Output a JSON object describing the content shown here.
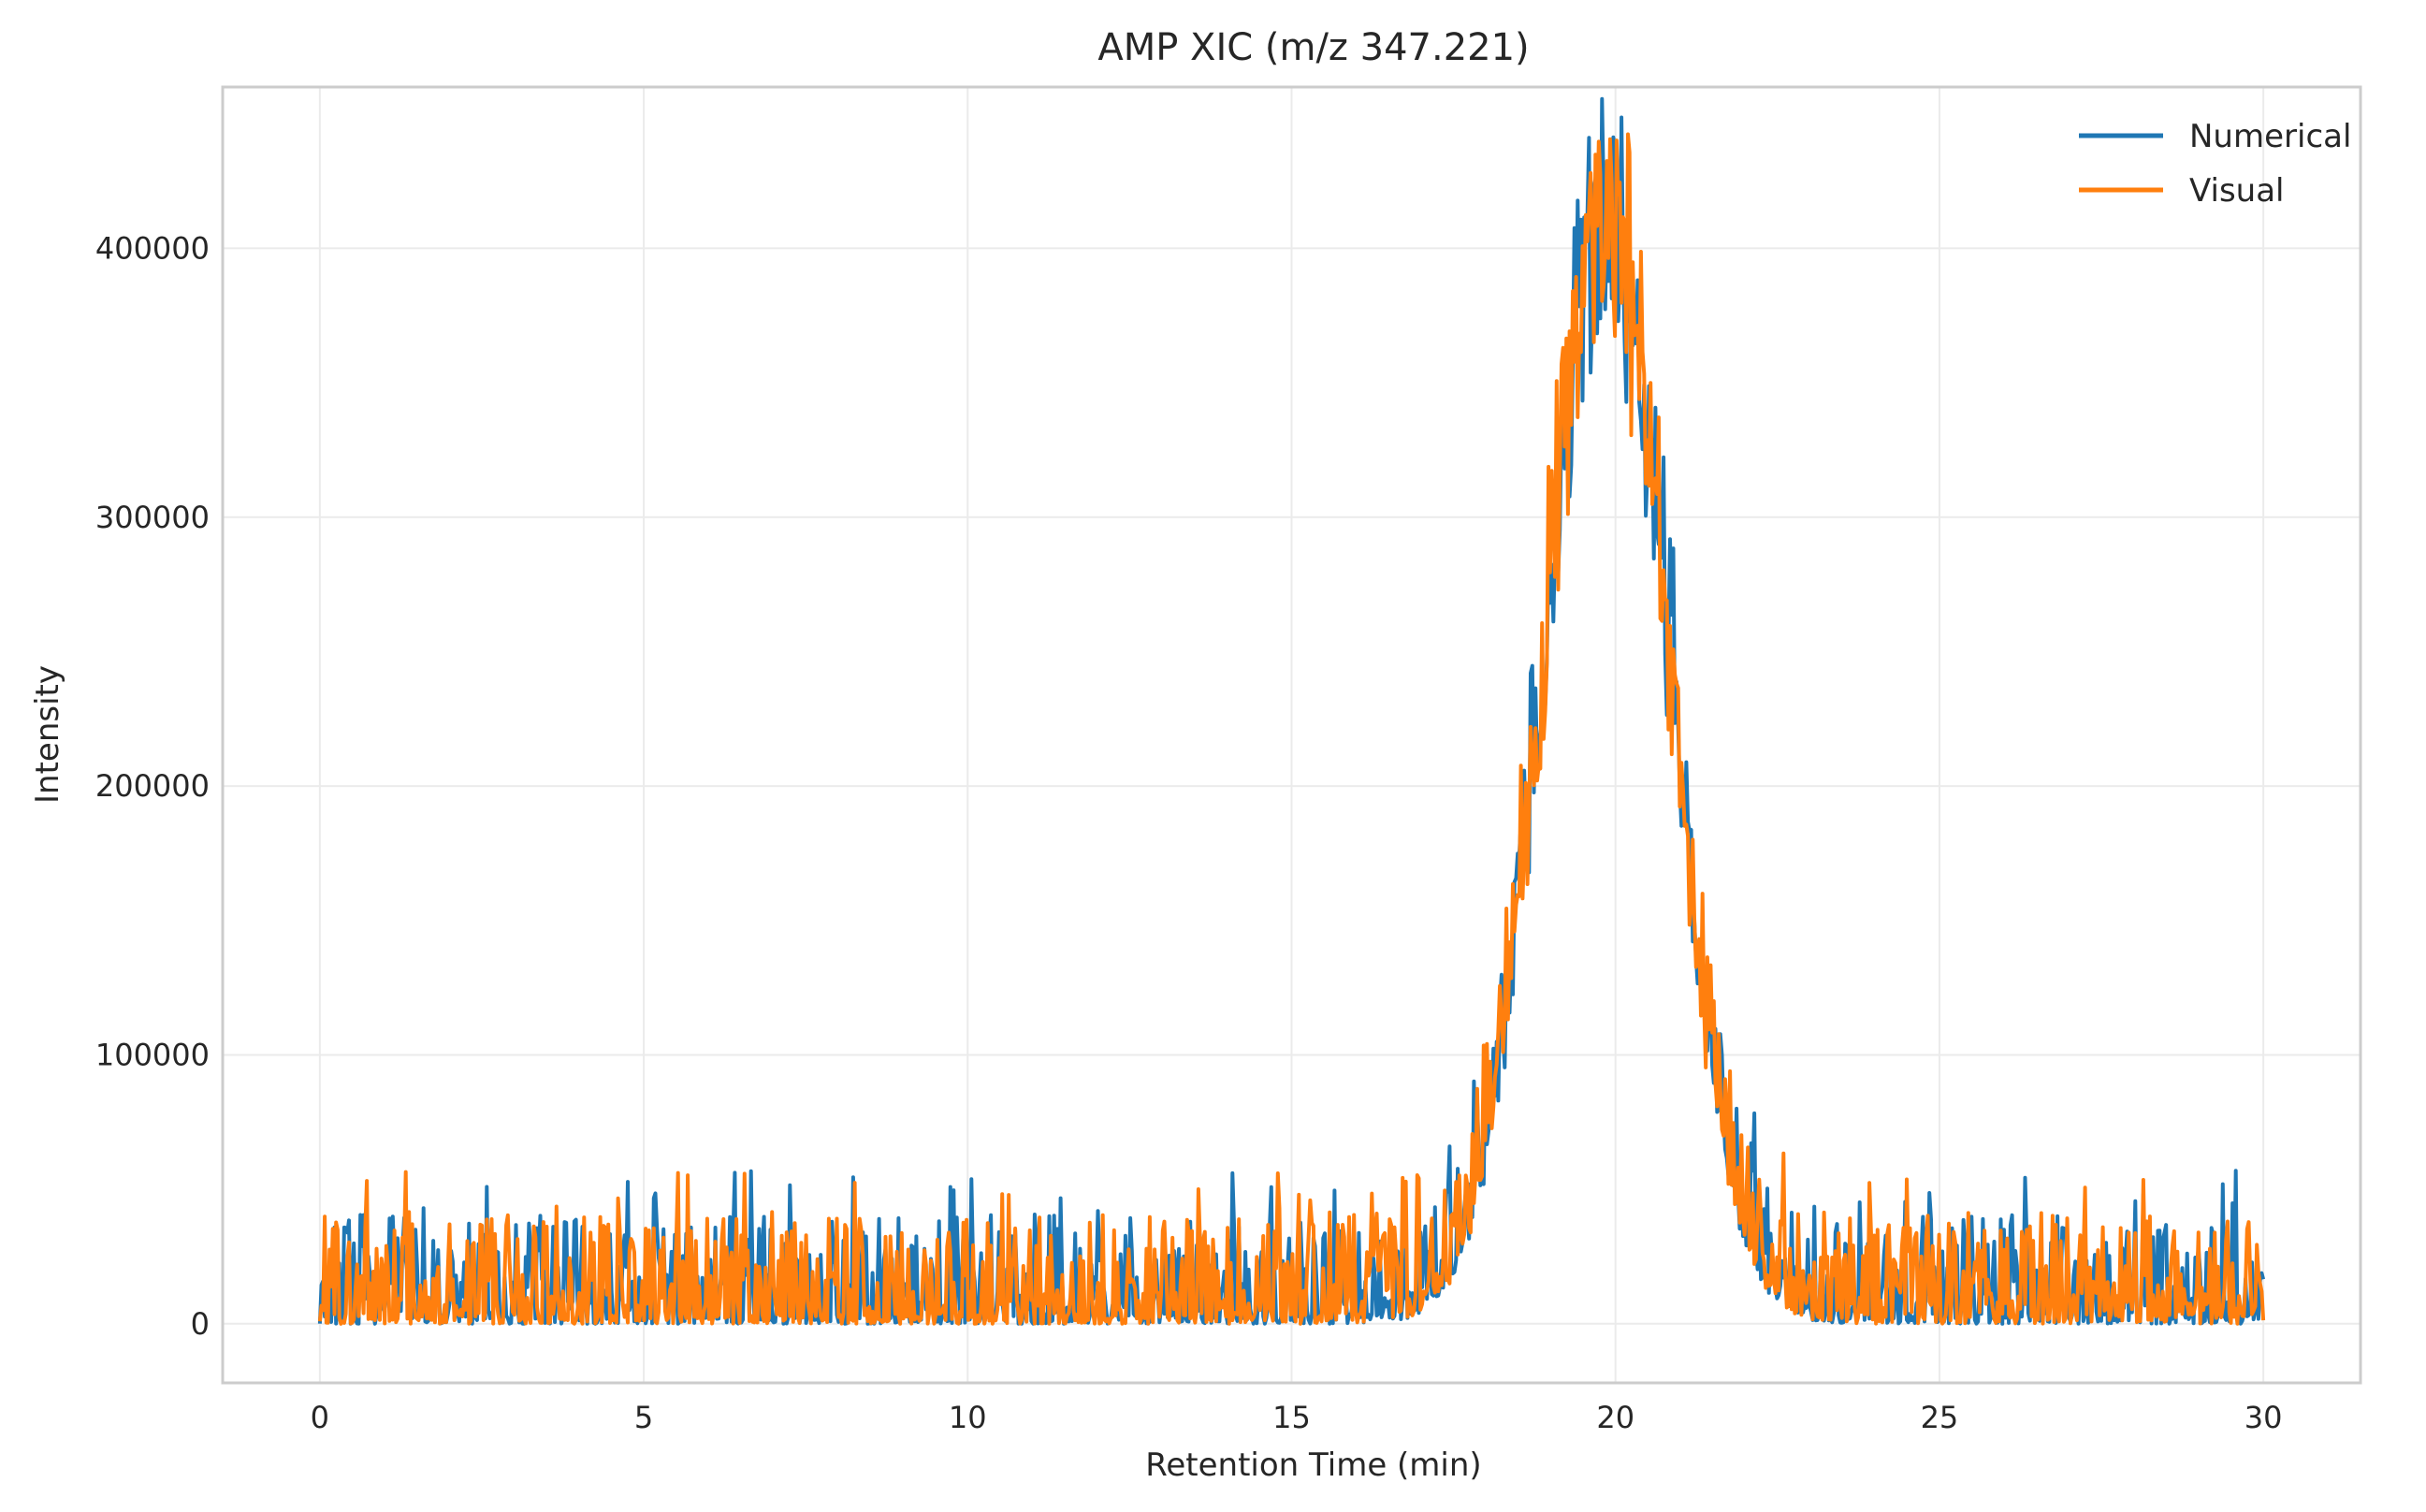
{
  "chart_data": {
    "type": "line",
    "title": "AMP XIC (m/z 347.221)",
    "xlabel": "Retention Time (min)",
    "ylabel": "Intensity",
    "xlim": [
      -1.5,
      31.5
    ],
    "ylim": [
      -22000,
      460000
    ],
    "xticks": [
      0,
      5,
      10,
      15,
      20,
      25,
      30
    ],
    "yticks": [
      0,
      100000,
      200000,
      300000,
      400000
    ],
    "grid": true,
    "legend_position": "top-right",
    "signal": {
      "x_range": [
        0,
        30
      ],
      "n_points": 1200,
      "peak_center": 19.85,
      "peak_sigma": 0.95,
      "peak_height": 400000,
      "baseline_noise_max": 48000
    },
    "series": [
      {
        "name": "Numerical",
        "color": "#1f77b4",
        "seed": 7,
        "max_value": 438000
      },
      {
        "name": "Visual",
        "color": "#ff7f0e",
        "seed": 23,
        "max_value": 420000
      }
    ]
  }
}
